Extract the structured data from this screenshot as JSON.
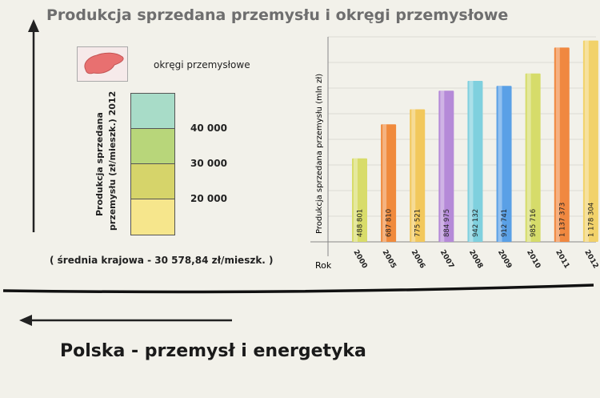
{
  "page": {
    "title": "Produkcja sprzedana przemysłu i okręgi przemysłowe",
    "footer_title": "Polska - przemysł i energetyka"
  },
  "legend": {
    "region_label": "okręgi przemysłowe",
    "region_color": "#e87070",
    "scale_title_line1": "Produkcja sprzedana",
    "scale_title_line2": "przemysłu (zł/mieszk.) 2012",
    "scale_colors": [
      "#a8dcc8",
      "#b8d67a",
      "#d6d46a",
      "#f6e68c"
    ],
    "scale_values": [
      "40 000",
      "30 000",
      "20 000"
    ],
    "footnote": "( średnia krajowa - 30 578,84 zł/mieszk. )"
  },
  "chart_data": {
    "type": "bar",
    "ylabel": "Produkcja sprzedana przemysłu (mln zł)",
    "xlabel": "Rok",
    "categories": [
      "2000",
      "2005",
      "2006",
      "2007",
      "2008",
      "2009",
      "2010",
      "2011",
      "2012"
    ],
    "values": [
      488801,
      687810,
      775521,
      884975,
      942132,
      912741,
      985716,
      1137373,
      1178304
    ],
    "value_labels": [
      "488 801",
      "687 810",
      "775 521",
      "884 975",
      "942 132",
      "912 741",
      "985 716",
      "1 137 373",
      "1 178 304"
    ],
    "colors": [
      "#d8dc6a",
      "#f08a3c",
      "#f2c85c",
      "#b58ad8",
      "#7fd0de",
      "#5aa0e6",
      "#d6dc6a",
      "#f08840",
      "#f2d26a"
    ],
    "ylim": [
      0,
      1200000
    ],
    "grid": true
  }
}
